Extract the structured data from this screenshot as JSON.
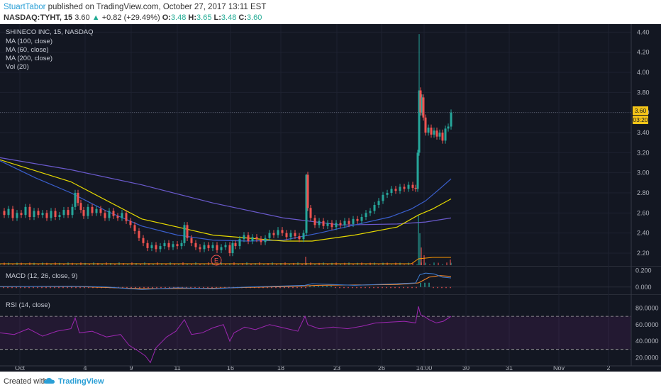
{
  "header": {
    "author": "StuartTabor",
    "published_text": "published on TradingView.com, October 27, 2017 13:11 EST",
    "symbol": "NASDAQ:TYHT, 15",
    "last": "3.60",
    "change": "+0.82 (+29.49%)",
    "o_label": "O:",
    "o": "3.48",
    "h_label": "H:",
    "h": "3.65",
    "l_label": "L:",
    "l": "3.48",
    "c_label": "C:",
    "c": "3.60"
  },
  "legend": {
    "title": "SHINECO INC, 15, NASDAQ",
    "ma100": "MA (100, close)",
    "ma60": "MA (60, close)",
    "ma200": "MA (200, close)",
    "vol": "Vol (20)",
    "macd": "MACD (12, 26, close, 9)",
    "rsi": "RSI (14, close)",
    "earnings": "E"
  },
  "price_badges": {
    "last": "3.60",
    "countdown": "03:20"
  },
  "footer": {
    "created": "Created with",
    "brand": "TradingView"
  },
  "colors": {
    "background": "#131722",
    "up": "#26a69a",
    "down": "#ef5350",
    "ma100": "#3a5fcd",
    "ma60": "#e6d900",
    "ma200": "#6a5acd",
    "rsi": "#9c27b0",
    "macd": "#3f7fd6",
    "signal": "#ff8c28",
    "badge": "#f5c518"
  },
  "chart_data": [
    {
      "type": "candlestick",
      "title": "SHINECO INC, 15, NASDAQ",
      "x_ticks": [
        "Oct",
        "4",
        "9",
        "11",
        "16",
        "18",
        "23",
        "26",
        "14:00",
        "30",
        "31",
        "Nov",
        "2"
      ],
      "y_ticks": [
        "4.40",
        "4.20",
        "4.00",
        "3.80",
        "3.60",
        "3.40",
        "3.20",
        "3.00",
        "2.80",
        "2.60",
        "2.40",
        "2.20"
      ],
      "ylim": [
        2.08,
        4.48
      ],
      "price_series": [
        [
          0,
          2.62
        ],
        [
          6,
          2.58
        ],
        [
          12,
          2.64
        ],
        [
          18,
          2.55
        ],
        [
          24,
          2.6
        ],
        [
          30,
          2.58
        ],
        [
          36,
          2.66
        ],
        [
          42,
          2.56
        ],
        [
          48,
          2.62
        ],
        [
          54,
          2.58
        ],
        [
          60,
          2.6
        ],
        [
          66,
          2.55
        ],
        [
          72,
          2.62
        ],
        [
          78,
          2.56
        ],
        [
          84,
          2.58
        ],
        [
          90,
          2.63
        ],
        [
          96,
          2.58
        ],
        [
          102,
          2.66
        ],
        [
          106,
          2.8
        ],
        [
          110,
          2.7
        ],
        [
          114,
          2.63
        ],
        [
          118,
          2.57
        ],
        [
          124,
          2.66
        ],
        [
          130,
          2.6
        ],
        [
          136,
          2.64
        ],
        [
          142,
          2.6
        ],
        [
          148,
          2.55
        ],
        [
          154,
          2.62
        ],
        [
          160,
          2.57
        ],
        [
          166,
          2.55
        ],
        [
          172,
          2.6
        ],
        [
          178,
          2.52
        ],
        [
          184,
          2.48
        ],
        [
          190,
          2.42
        ],
        [
          196,
          2.35
        ],
        [
          202,
          2.3
        ],
        [
          208,
          2.25
        ],
        [
          214,
          2.28
        ],
        [
          220,
          2.24
        ],
        [
          226,
          2.27
        ],
        [
          232,
          2.3
        ],
        [
          238,
          2.26
        ],
        [
          244,
          2.29
        ],
        [
          250,
          2.27
        ],
        [
          256,
          2.3
        ],
        [
          260,
          2.48
        ],
        [
          264,
          2.35
        ],
        [
          270,
          2.3
        ],
        [
          276,
          2.26
        ],
        [
          282,
          2.24
        ],
        [
          288,
          2.28
        ],
        [
          294,
          2.25
        ],
        [
          300,
          2.28
        ],
        [
          306,
          2.23
        ],
        [
          312,
          2.26
        ],
        [
          318,
          2.28
        ],
        [
          324,
          2.2
        ],
        [
          328,
          2.3
        ],
        [
          332,
          2.27
        ],
        [
          338,
          2.34
        ],
        [
          344,
          2.38
        ],
        [
          350,
          2.32
        ],
        [
          356,
          2.36
        ],
        [
          362,
          2.34
        ],
        [
          368,
          2.31
        ],
        [
          374,
          2.35
        ],
        [
          380,
          2.4
        ],
        [
          386,
          2.38
        ],
        [
          392,
          2.43
        ],
        [
          398,
          2.4
        ],
        [
          404,
          2.36
        ],
        [
          410,
          2.4
        ],
        [
          416,
          2.37
        ],
        [
          422,
          2.34
        ],
        [
          428,
          2.4
        ],
        [
          432,
          2.98
        ],
        [
          434,
          2.65
        ],
        [
          438,
          2.55
        ],
        [
          444,
          2.48
        ],
        [
          450,
          2.52
        ],
        [
          456,
          2.47
        ],
        [
          462,
          2.5
        ],
        [
          468,
          2.46
        ],
        [
          474,
          2.5
        ],
        [
          480,
          2.48
        ],
        [
          486,
          2.52
        ],
        [
          492,
          2.49
        ],
        [
          498,
          2.54
        ],
        [
          504,
          2.52
        ],
        [
          510,
          2.56
        ],
        [
          516,
          2.6
        ],
        [
          522,
          2.62
        ],
        [
          528,
          2.68
        ],
        [
          534,
          2.72
        ],
        [
          540,
          2.78
        ],
        [
          546,
          2.8
        ],
        [
          552,
          2.84
        ],
        [
          558,
          2.82
        ],
        [
          564,
          2.86
        ],
        [
          570,
          2.84
        ],
        [
          576,
          2.88
        ],
        [
          582,
          2.85
        ],
        [
          586,
          2.84
        ],
        [
          589,
          3.2
        ],
        [
          591,
          3.82
        ],
        [
          593,
          3.6
        ],
        [
          595,
          3.75
        ],
        [
          597,
          3.55
        ],
        [
          600,
          3.4
        ],
        [
          604,
          3.45
        ],
        [
          608,
          3.38
        ],
        [
          612,
          3.42
        ],
        [
          616,
          3.36
        ],
        [
          620,
          3.4
        ],
        [
          624,
          3.32
        ],
        [
          628,
          3.44
        ],
        [
          632,
          3.46
        ],
        [
          636,
          3.6
        ]
      ],
      "ma100": [
        [
          0,
          3.15
        ],
        [
          100,
          3.03
        ],
        [
          200,
          2.88
        ],
        [
          300,
          2.7
        ],
        [
          400,
          2.55
        ],
        [
          480,
          2.48
        ],
        [
          560,
          2.49
        ],
        [
          600,
          2.51
        ],
        [
          636,
          2.55
        ]
      ],
      "ma60": [
        [
          0,
          3.13
        ],
        [
          100,
          2.91
        ],
        [
          200,
          2.54
        ],
        [
          300,
          2.38
        ],
        [
          400,
          2.32
        ],
        [
          440,
          2.32
        ],
        [
          500,
          2.38
        ],
        [
          560,
          2.46
        ],
        [
          590,
          2.58
        ],
        [
          610,
          2.64
        ],
        [
          636,
          2.74
        ]
      ],
      "ma200": [
        [
          0,
          3.12
        ],
        [
          50,
          2.95
        ],
        [
          100,
          2.8
        ],
        [
          150,
          2.62
        ],
        [
          200,
          2.47
        ],
        [
          250,
          2.38
        ],
        [
          300,
          2.33
        ],
        [
          350,
          2.32
        ],
        [
          400,
          2.33
        ],
        [
          450,
          2.4
        ],
        [
          500,
          2.48
        ],
        [
          550,
          2.56
        ],
        [
          580,
          2.64
        ],
        [
          600,
          2.72
        ],
        [
          620,
          2.84
        ],
        [
          636,
          2.94
        ]
      ]
    },
    {
      "type": "line",
      "title": "MACD (12, 26, close, 9)",
      "y_ticks": [
        "0.200",
        "0.000"
      ],
      "ylim": [
        -0.08,
        0.24
      ],
      "macd": [
        [
          0,
          0.005
        ],
        [
          100,
          0.01
        ],
        [
          150,
          0.0
        ],
        [
          200,
          -0.03
        ],
        [
          250,
          -0.01
        ],
        [
          300,
          -0.02
        ],
        [
          350,
          0.0
        ],
        [
          430,
          0.02
        ],
        [
          440,
          0.04
        ],
        [
          500,
          0.02
        ],
        [
          560,
          0.04
        ],
        [
          586,
          0.05
        ],
        [
          592,
          0.15
        ],
        [
          600,
          0.17
        ],
        [
          612,
          0.16
        ],
        [
          624,
          0.12
        ],
        [
          636,
          0.11
        ]
      ],
      "signal": [
        [
          0,
          0.005
        ],
        [
          100,
          0.008
        ],
        [
          200,
          -0.02
        ],
        [
          300,
          -0.015
        ],
        [
          400,
          0.005
        ],
        [
          450,
          0.02
        ],
        [
          560,
          0.03
        ],
        [
          590,
          0.05
        ],
        [
          605,
          0.12
        ],
        [
          620,
          0.14
        ],
        [
          636,
          0.13
        ]
      ]
    },
    {
      "type": "line",
      "title": "RSI (14, close)",
      "y_ticks": [
        "80.0000",
        "60.0000",
        "40.0000",
        "20.0000"
      ],
      "ylim": [
        10,
        95
      ],
      "overbought": 70,
      "oversold": 30,
      "rsi": [
        [
          0,
          50
        ],
        [
          20,
          48
        ],
        [
          40,
          55
        ],
        [
          60,
          46
        ],
        [
          80,
          52
        ],
        [
          100,
          55
        ],
        [
          106,
          68
        ],
        [
          112,
          50
        ],
        [
          130,
          52
        ],
        [
          150,
          45
        ],
        [
          170,
          48
        ],
        [
          182,
          35
        ],
        [
          195,
          28
        ],
        [
          205,
          22
        ],
        [
          212,
          14
        ],
        [
          220,
          32
        ],
        [
          235,
          45
        ],
        [
          248,
          52
        ],
        [
          260,
          66
        ],
        [
          270,
          48
        ],
        [
          285,
          50
        ],
        [
          300,
          56
        ],
        [
          315,
          60
        ],
        [
          324,
          40
        ],
        [
          330,
          50
        ],
        [
          345,
          57
        ],
        [
          360,
          54
        ],
        [
          380,
          60
        ],
        [
          400,
          56
        ],
        [
          420,
          52
        ],
        [
          430,
          70
        ],
        [
          434,
          60
        ],
        [
          450,
          55
        ],
        [
          470,
          57
        ],
        [
          490,
          55
        ],
        [
          510,
          58
        ],
        [
          530,
          62
        ],
        [
          550,
          63
        ],
        [
          570,
          64
        ],
        [
          586,
          62
        ],
        [
          590,
          82
        ],
        [
          593,
          72
        ],
        [
          598,
          70
        ],
        [
          605,
          66
        ],
        [
          615,
          62
        ],
        [
          625,
          64
        ],
        [
          636,
          70
        ]
      ]
    }
  ]
}
